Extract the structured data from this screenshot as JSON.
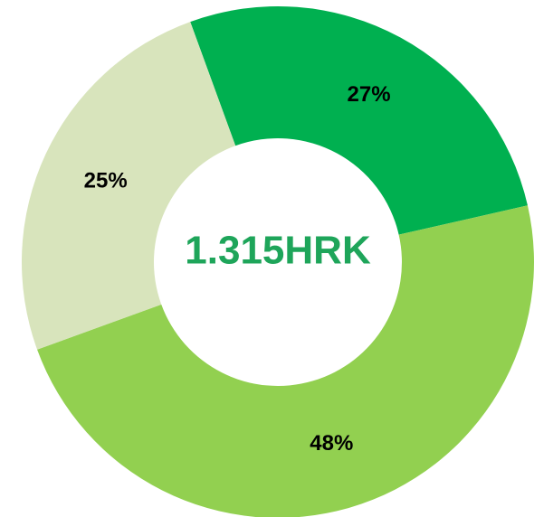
{
  "chart_data": {
    "type": "donut",
    "values": [
      27,
      48,
      25
    ],
    "value_labels": [
      "27%",
      "48%",
      "25%"
    ],
    "colors": [
      "#00b050",
      "#92d050",
      "#d8e4bc"
    ],
    "center_label": "1.315HRK"
  }
}
